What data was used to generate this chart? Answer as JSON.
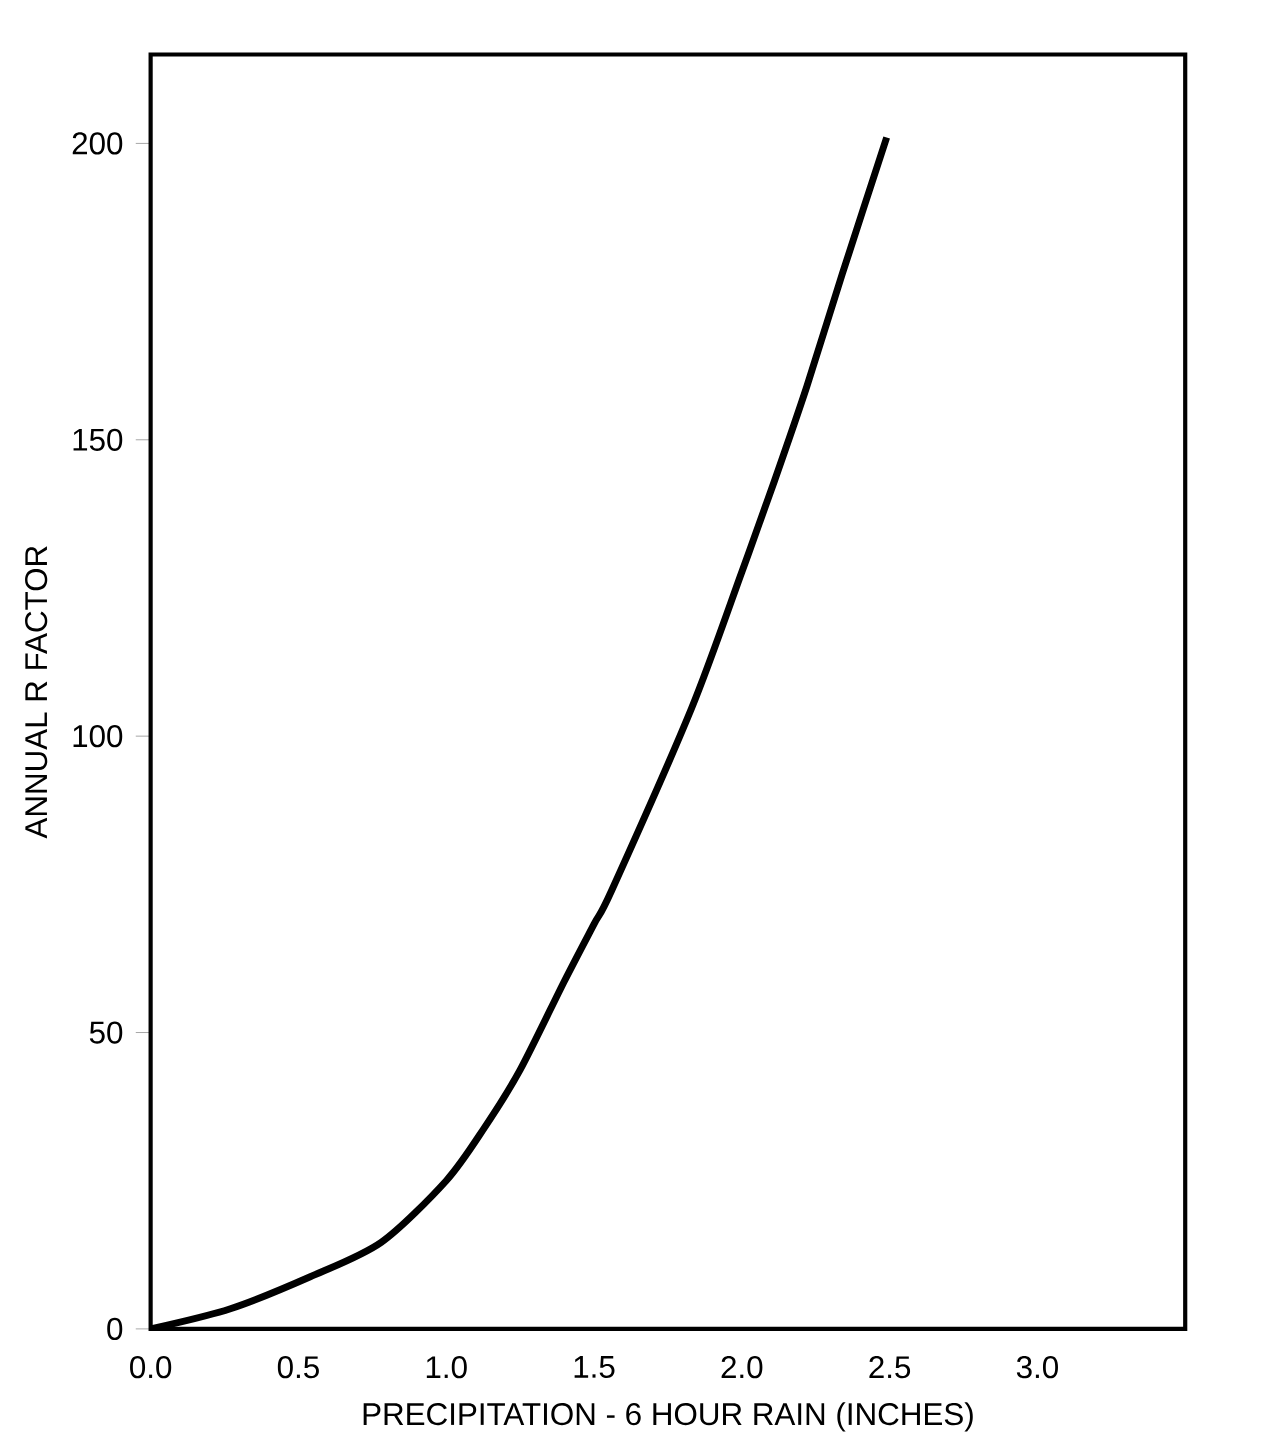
{
  "chart_data": {
    "type": "line",
    "xlabel": "PRECIPITATION - 6 HOUR RAIN (INCHES)",
    "ylabel": "ANNUAL R FACTOR",
    "x": [
      0,
      0.27,
      0.54,
      0.78,
      1.0,
      1.13,
      1.25,
      1.4,
      1.5,
      1.56,
      1.83,
      2.0,
      2.11,
      2.22,
      2.34,
      2.49
    ],
    "series": [
      {
        "color": "#000000",
        "values": [
          0,
          3.4,
          8.8,
          14.6,
          25,
          34,
          43.7,
          58.7,
          68.3,
          74,
          104.7,
          127.7,
          143,
          159,
          178,
          201
        ]
      }
    ],
    "xlim": [
      0,
      3.5
    ],
    "ylim": [
      0,
      215
    ],
    "xticks": [
      {
        "value": 0,
        "label": "0.0"
      },
      {
        "value": 0.5,
        "label": "0.5"
      },
      {
        "value": 1,
        "label": "1.0"
      },
      {
        "value": 1.5,
        "label": "1.5"
      },
      {
        "value": 2,
        "label": "2.0"
      },
      {
        "value": 2.5,
        "label": "2.5"
      },
      {
        "value": 3,
        "label": "3.0"
      }
    ],
    "yticks": [
      0,
      50,
      100,
      150,
      200
    ],
    "grid": false,
    "marker": "none",
    "line_style": "solid"
  }
}
